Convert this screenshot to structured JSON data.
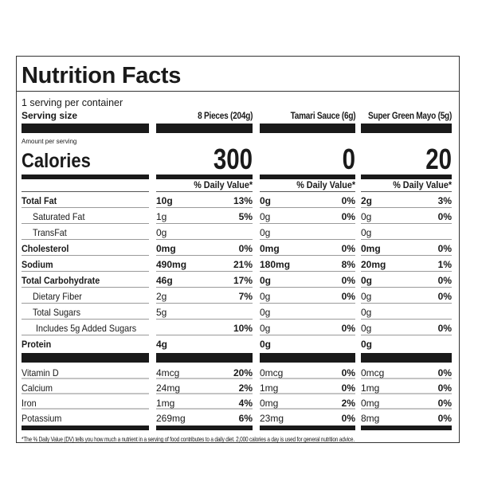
{
  "title": "Nutrition Facts",
  "servings": "1 serving per container",
  "serving_size_label": "Serving size",
  "columns": [
    "8 Pieces (204g)",
    "Tamari Sauce (6g)",
    "Super Green Mayo (5g)"
  ],
  "amount_per_serving": "Amount per serving",
  "calories_label": "Calories",
  "calories": [
    "300",
    "0",
    "20"
  ],
  "daily_value_header": "% Daily Value*",
  "nutrients": [
    {
      "label": "Total Fat",
      "bold": true,
      "indent": 0,
      "values": [
        [
          "10g",
          "13%"
        ],
        [
          "0g",
          "0%"
        ],
        [
          "2g",
          "3%"
        ]
      ]
    },
    {
      "label": "Saturated Fat",
      "bold": false,
      "indent": 1,
      "values": [
        [
          "1g",
          "5%"
        ],
        [
          "0g",
          "0%"
        ],
        [
          "0g",
          "0%"
        ]
      ]
    },
    {
      "label": "TransFat",
      "bold": false,
      "indent": 1,
      "values": [
        [
          "0g",
          ""
        ],
        [
          "0g",
          ""
        ],
        [
          "0g",
          ""
        ]
      ]
    },
    {
      "label": "Cholesterol",
      "bold": true,
      "indent": 0,
      "values": [
        [
          "0mg",
          "0%"
        ],
        [
          "0mg",
          "0%"
        ],
        [
          "0mg",
          "0%"
        ]
      ]
    },
    {
      "label": "Sodium",
      "bold": true,
      "indent": 0,
      "values": [
        [
          "490mg",
          "21%"
        ],
        [
          "180mg",
          "8%"
        ],
        [
          "20mg",
          "1%"
        ]
      ]
    },
    {
      "label": "Total Carbohydrate",
      "bold": true,
      "indent": 0,
      "values": [
        [
          "46g",
          "17%"
        ],
        [
          "0g",
          "0%"
        ],
        [
          "0g",
          "0%"
        ]
      ]
    },
    {
      "label": "Dietary Fiber",
      "bold": false,
      "indent": 1,
      "values": [
        [
          "2g",
          "7%"
        ],
        [
          "0g",
          "0%"
        ],
        [
          "0g",
          "0%"
        ]
      ]
    },
    {
      "label": "Total Sugars",
      "bold": false,
      "indent": 1,
      "values": [
        [
          "5g",
          ""
        ],
        [
          "0g",
          ""
        ],
        [
          "0g",
          ""
        ]
      ]
    },
    {
      "label": "Includes 5g Added Sugars",
      "bold": false,
      "indent": 2,
      "values": [
        [
          "",
          "10%"
        ],
        [
          "0g",
          "0%"
        ],
        [
          "0g",
          "0%"
        ]
      ]
    },
    {
      "label": "Protein",
      "bold": true,
      "indent": 0,
      "values": [
        [
          "4g",
          ""
        ],
        [
          "0g",
          ""
        ],
        [
          "0g",
          ""
        ]
      ]
    }
  ],
  "vitamins": [
    {
      "label": "Vitamin D",
      "values": [
        [
          "4mcg",
          "20%"
        ],
        [
          "0mcg",
          "0%"
        ],
        [
          "0mcg",
          "0%"
        ]
      ]
    },
    {
      "label": "Calcium",
      "values": [
        [
          "24mg",
          "2%"
        ],
        [
          "1mg",
          "0%"
        ],
        [
          "1mg",
          "0%"
        ]
      ]
    },
    {
      "label": "Iron",
      "values": [
        [
          "1mg",
          "4%"
        ],
        [
          "0mg",
          "2%"
        ],
        [
          "0mg",
          "0%"
        ]
      ]
    },
    {
      "label": "Potassium",
      "values": [
        [
          "269mg",
          "6%"
        ],
        [
          "23mg",
          "0%"
        ],
        [
          "8mg",
          "0%"
        ]
      ]
    }
  ],
  "footnote": "*The % Daily Value (DV) tells you how much a nutrient in a serving of food contributes to a daily diet. 2,000 calories a day is used for general nutrition advice."
}
